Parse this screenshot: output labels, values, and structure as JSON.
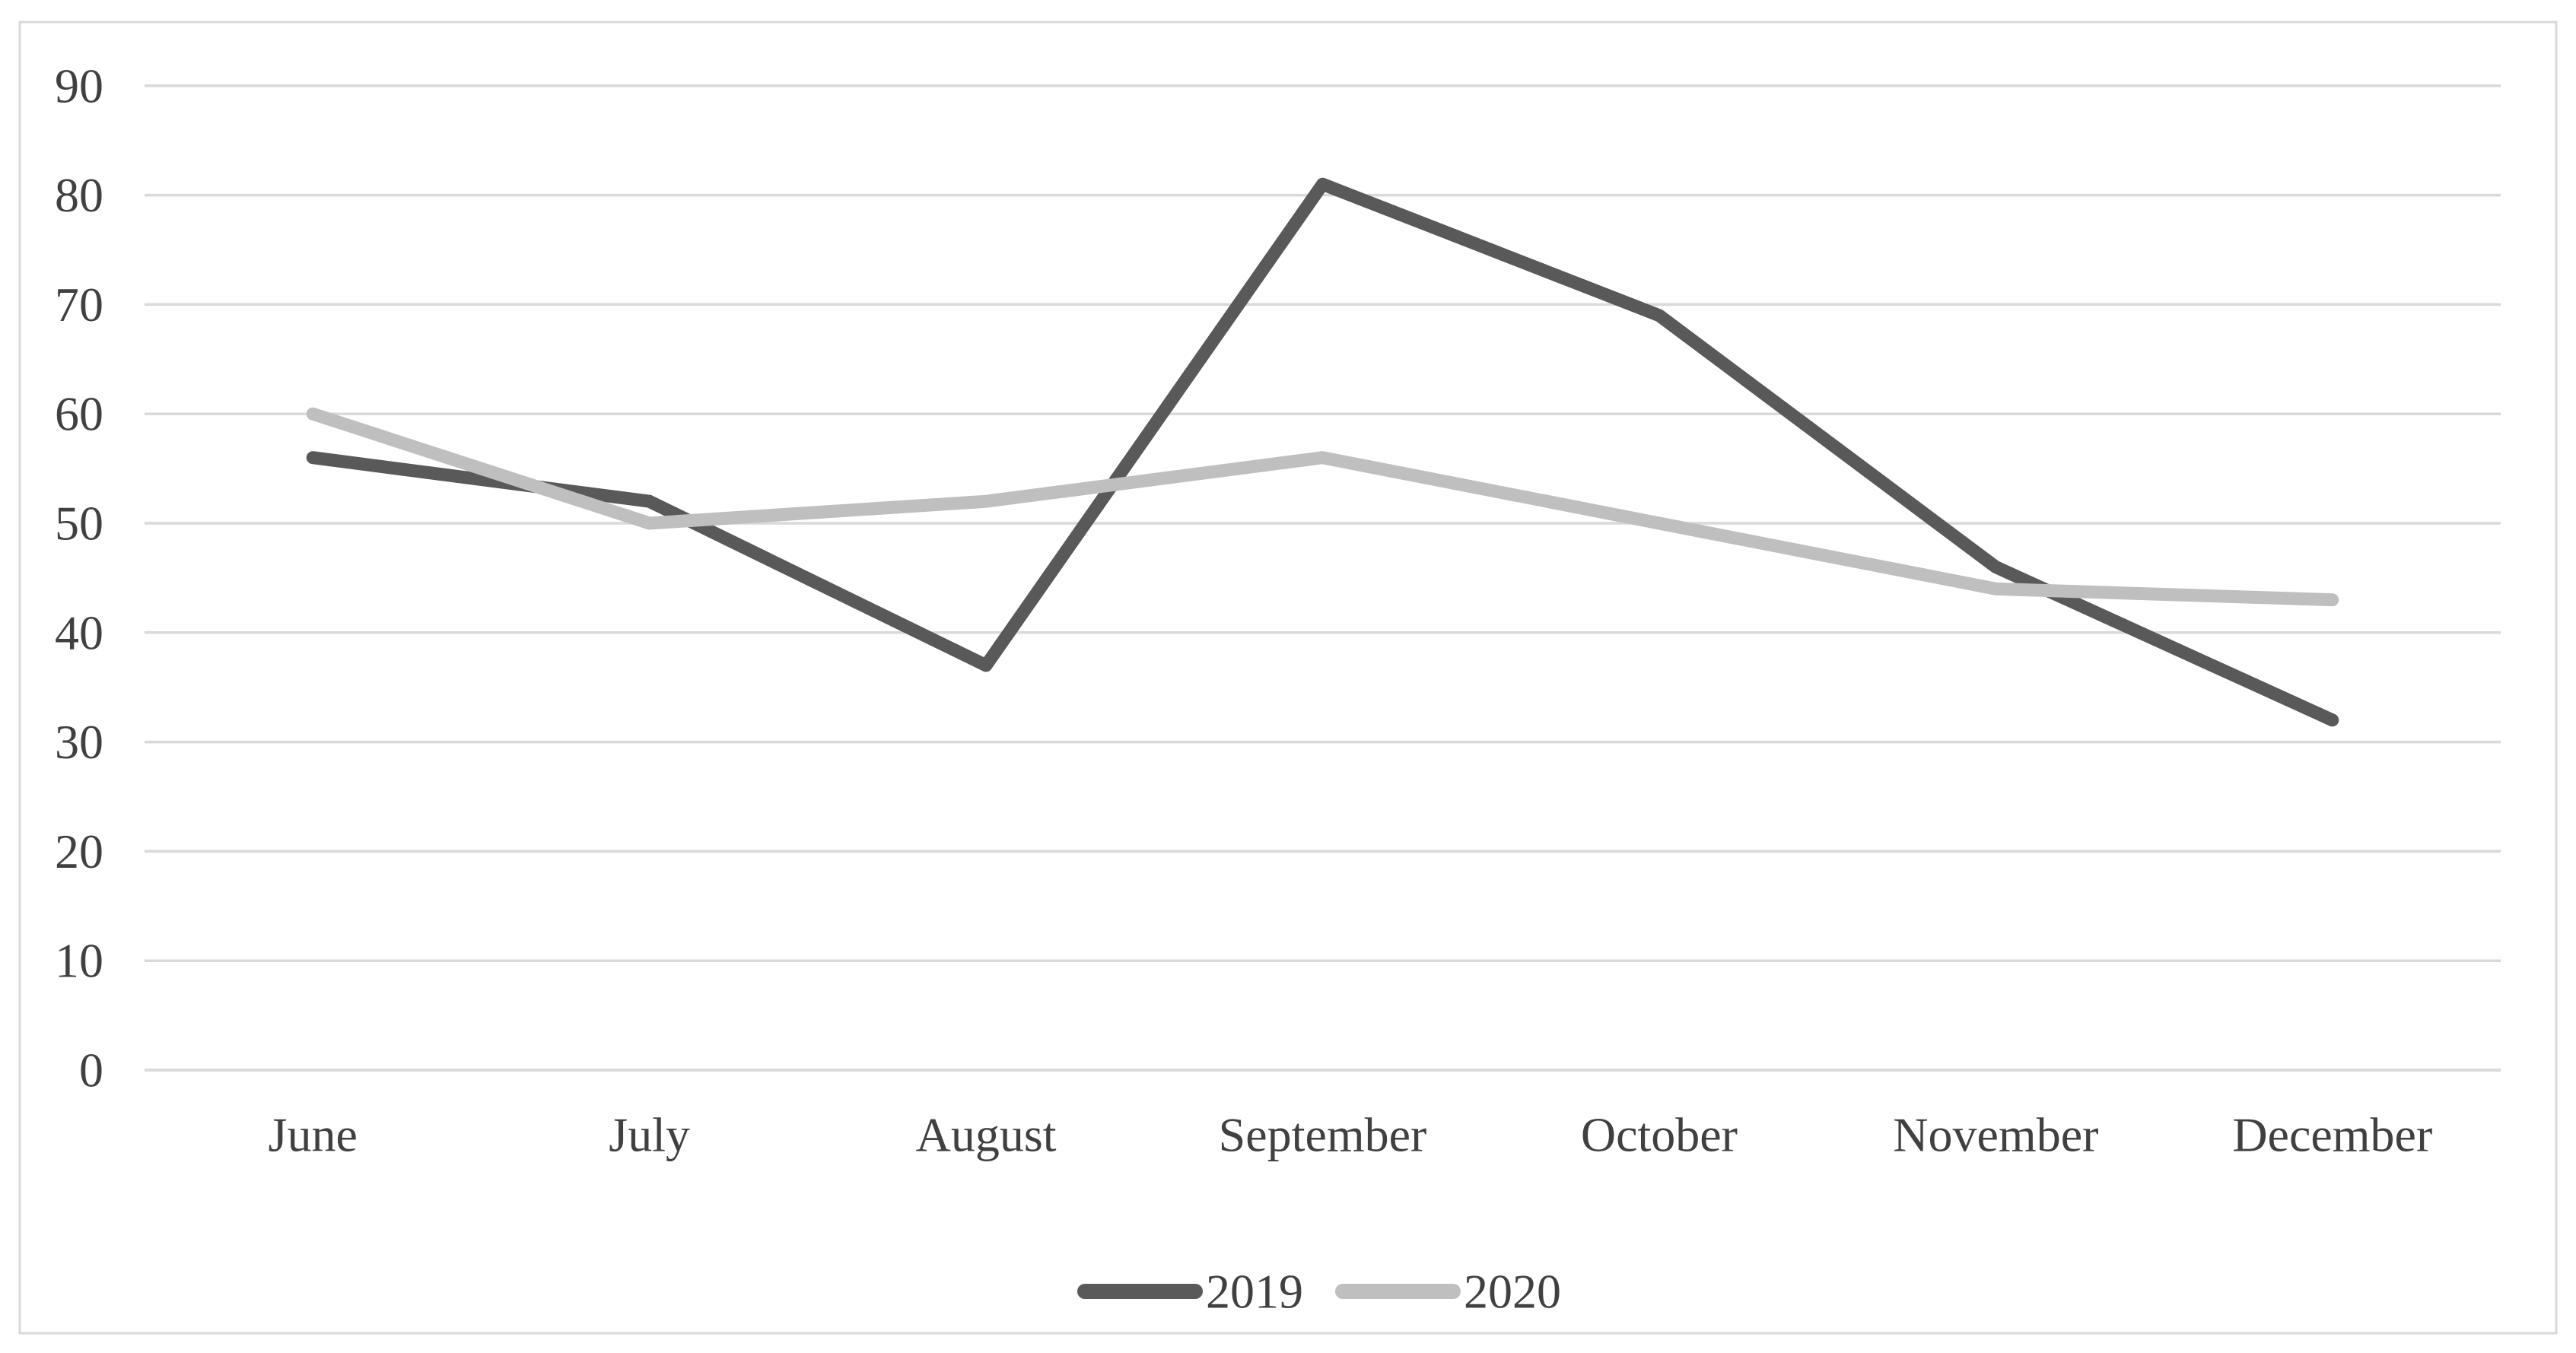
{
  "chart_data": {
    "type": "line",
    "categories": [
      "June",
      "July",
      "August",
      "September",
      "October",
      "November",
      "December"
    ],
    "series": [
      {
        "name": "2019",
        "color": "#595959",
        "values": [
          56,
          52,
          37,
          81,
          69,
          46,
          32
        ]
      },
      {
        "name": "2020",
        "color": "#bfbfbf",
        "values": [
          60,
          50,
          52,
          56,
          50,
          44,
          43
        ]
      }
    ],
    "title": "",
    "xlabel": "",
    "ylabel": "",
    "ylim": [
      0,
      90
    ],
    "ytick_step": 10,
    "ytick_labels": [
      "0",
      "10",
      "20",
      "30",
      "40",
      "50",
      "60",
      "70",
      "80",
      "90"
    ],
    "grid": "horizontal",
    "legend_position": "bottom-center",
    "legend_labels": [
      "2019",
      "2020"
    ]
  },
  "colors": {
    "background": "#ffffff",
    "chart_border": "#d9d9d9",
    "gridline": "#d9d9d9",
    "axis_line": "#d9d9d9",
    "axis_text": "#404040",
    "legend_text": "#404040",
    "series_2019": "#595959",
    "series_2020": "#bfbfbf"
  }
}
